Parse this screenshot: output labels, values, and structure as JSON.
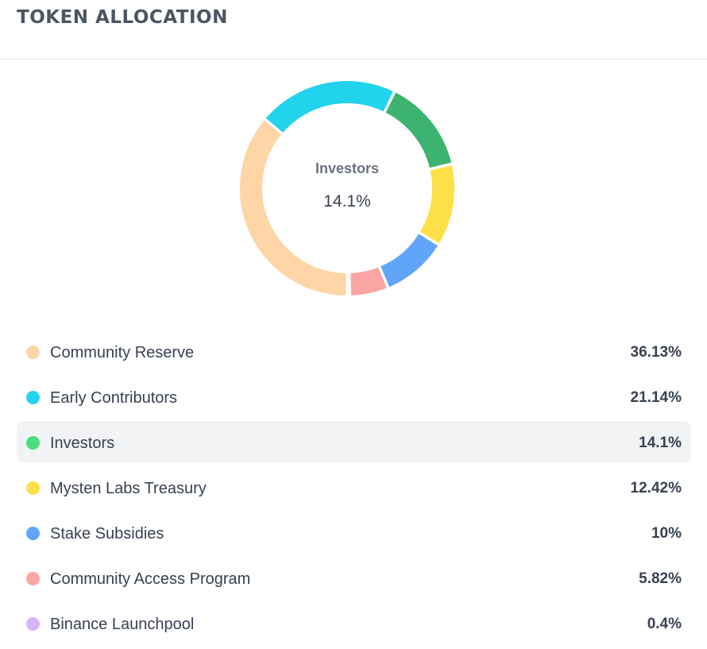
{
  "header": {
    "title": "TOKEN ALLOCATION"
  },
  "center": {
    "label": "Investors",
    "value": "14.1%"
  },
  "colors": {
    "community_reserve": "#fdd5a6",
    "early_contributors": "#22d3ee",
    "investors": "#3cb371",
    "mysten_labs_treasury": "#fde047",
    "stake_subsidies": "#60a5fa",
    "community_access_program": "#fca5a5",
    "binance_launchpool": "#d8b4fe",
    "investors_legend_dot": "#4ade80"
  },
  "chart_data": {
    "type": "pie",
    "donut": true,
    "categories": [
      "Community Reserve",
      "Early Contributors",
      "Investors",
      "Mysten Labs Treasury",
      "Stake Subsidies",
      "Community Access Program",
      "Binance Launchpool"
    ],
    "values": [
      36.13,
      21.14,
      14.1,
      12.42,
      10,
      5.82,
      0.4
    ],
    "highlighted": "Investors"
  },
  "legend": [
    {
      "label": "Community Reserve",
      "value": "36.13%",
      "color": "#fdd5a6"
    },
    {
      "label": "Early Contributors",
      "value": "21.14%",
      "color": "#22d3ee"
    },
    {
      "label": "Investors",
      "value": "14.1%",
      "color": "#4ade80",
      "active": true
    },
    {
      "label": "Mysten Labs Treasury",
      "value": "12.42%",
      "color": "#fde047"
    },
    {
      "label": "Stake Subsidies",
      "value": "10%",
      "color": "#60a5fa"
    },
    {
      "label": "Community Access Program",
      "value": "5.82%",
      "color": "#fca5a5"
    },
    {
      "label": "Binance Launchpool",
      "value": "0.4%",
      "color": "#d8b4fe"
    }
  ]
}
